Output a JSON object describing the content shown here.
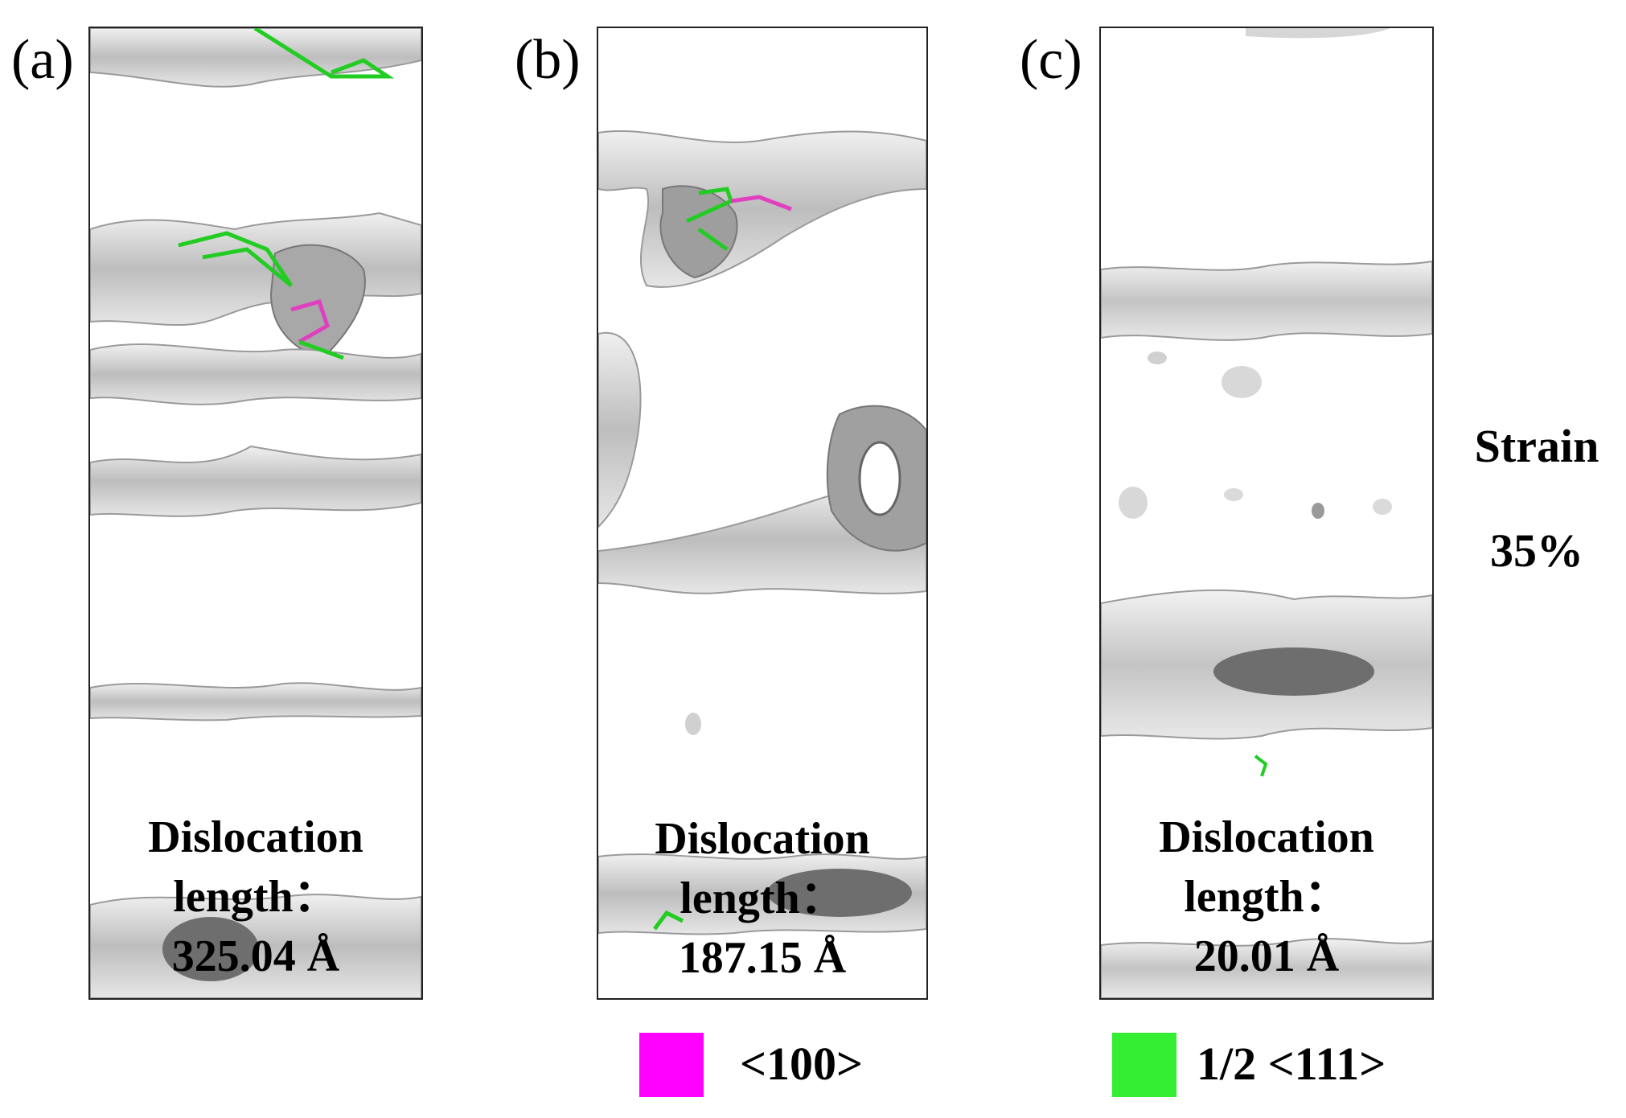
{
  "panels": [
    {
      "label": "(a)",
      "caption_line1": "Dislocation",
      "caption_line2": "length：",
      "caption_value": "325.04 Å"
    },
    {
      "label": "(b)",
      "caption_line1": "Dislocation",
      "caption_line2": "length：",
      "caption_value": "187.15 Å"
    },
    {
      "label": "(c)",
      "caption_line1": "Dislocation",
      "caption_line2": "length：",
      "caption_value": "20.01 Å"
    }
  ],
  "strain": {
    "title": "Strain",
    "value": "35%"
  },
  "legend": [
    {
      "label": "<100>",
      "color": "#ff00ff"
    },
    {
      "label": "1/2 <111>",
      "color": "#33ee33"
    }
  ],
  "colors": {
    "surface": "#c8c8c8",
    "surface_dark": "#6e6e6e",
    "line_100": "#e040c0",
    "line_111": "#22cc22"
  }
}
